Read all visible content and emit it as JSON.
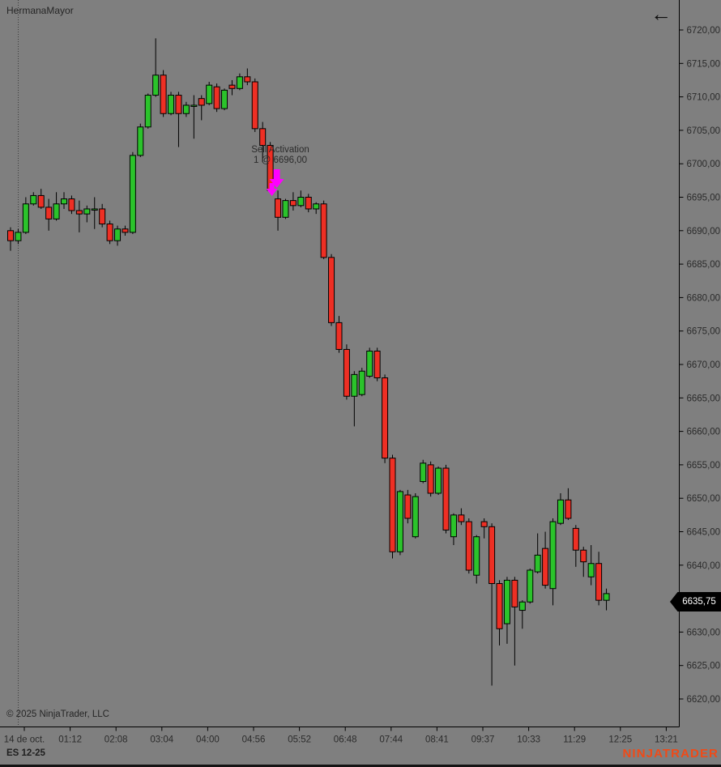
{
  "header": {
    "indicator_label": "HermanaMayor"
  },
  "icons": {
    "back_arrow_glyph": "←"
  },
  "annotation": {
    "line1": "Sell Activation",
    "line2": "1 @ 6696,00"
  },
  "footer": {
    "copyright": "© 2025 NinjaTrader, LLC",
    "instrument": "ES 12-25",
    "brand": "NINJATRADER"
  },
  "price_axis": {
    "labels": [
      "6720,00",
      "6715,00",
      "6710,00",
      "6705,00",
      "6700,00",
      "6695,00",
      "6690,00",
      "6685,00",
      "6680,00",
      "6675,00",
      "6670,00",
      "6665,00",
      "6660,00",
      "6655,00",
      "6650,00",
      "6645,00",
      "6640,00",
      "6635,00",
      "6630,00",
      "6625,00",
      "6620,00"
    ],
    "last_price_label": "6635,75"
  },
  "time_axis": {
    "labels": [
      "14 de oct.",
      "01:12",
      "02:08",
      "03:04",
      "04:00",
      "04:56",
      "05:52",
      "06:48",
      "07:44",
      "08:41",
      "09:37",
      "10:33",
      "11:29",
      "12:25",
      "13:21"
    ]
  },
  "colors": {
    "background": "#7f7f7f",
    "candle_up": "#2bc32b",
    "candle_down": "#ee2f24",
    "candle_outline": "#000000",
    "axis_line": "#000000",
    "label_text": "#2b2b2b",
    "marker_magenta": "#ff00ff",
    "badge_bg": "#000000",
    "badge_text": "#ffffff",
    "brand_orange": "#f04a17"
  },
  "chart_data": {
    "type": "candlestick",
    "title": "HermanaMayor",
    "instrument": "ES 12-25",
    "y_domain": [
      6620,
      6720
    ],
    "y_tick_step": 5,
    "x_labels": [
      "14 de oct.",
      "01:12",
      "02:08",
      "03:04",
      "04:00",
      "04:56",
      "05:52",
      "06:48",
      "07:44",
      "08:41",
      "09:37",
      "10:33",
      "11:29",
      "12:25",
      "13:21"
    ],
    "last_price": 6635.75,
    "session_break_index": 1,
    "annotation": {
      "text": "Sell Activation",
      "qty_price": "1 @ 6696,00",
      "price": 6696,
      "candle_index": 34,
      "marker_color": "#ff00ff"
    },
    "candles": [
      [
        6690,
        6690.5,
        6687,
        6688.5
      ],
      [
        6688.5,
        6690.25,
        6688,
        6689.75
      ],
      [
        6689.75,
        6695,
        6689.5,
        6694
      ],
      [
        6694,
        6695.75,
        6693.75,
        6695.25
      ],
      [
        6695.25,
        6696.25,
        6693.25,
        6693.5
      ],
      [
        6693.5,
        6694.75,
        6690,
        6691.75
      ],
      [
        6691.75,
        6695.75,
        6691.5,
        6694
      ],
      [
        6694,
        6695.75,
        6693.25,
        6694.75
      ],
      [
        6694.75,
        6695.25,
        6692.5,
        6693
      ],
      [
        6693,
        6694.5,
        6689.75,
        6692.5
      ],
      [
        6692.5,
        6693.75,
        6691.25,
        6693.25
      ],
      [
        6693.25,
        6695,
        6690.25,
        6693.25
      ],
      [
        6693.25,
        6694,
        6690.5,
        6691
      ],
      [
        6691,
        6691.5,
        6688,
        6688.5
      ],
      [
        6688.5,
        6690.75,
        6687.75,
        6690.25
      ],
      [
        6690.25,
        6690.75,
        6689.25,
        6689.75
      ],
      [
        6689.75,
        6701.75,
        6689.5,
        6701.25
      ],
      [
        6701.25,
        6706,
        6701,
        6705.5
      ],
      [
        6705.5,
        6710.5,
        6705.25,
        6710.25
      ],
      [
        6710.25,
        6718.75,
        6710,
        6713.25
      ],
      [
        6713.25,
        6714,
        6707,
        6707.5
      ],
      [
        6707.5,
        6710.75,
        6707.25,
        6710.25
      ],
      [
        6710.25,
        6710.75,
        6702.5,
        6707.5
      ],
      [
        6707.5,
        6709.25,
        6707,
        6708.75
      ],
      [
        6708.75,
        6710.25,
        6703.75,
        6708.75
      ],
      [
        6709.75,
        6710.25,
        6706.5,
        6708.75
      ],
      [
        6709,
        6712.25,
        6708.75,
        6711.75
      ],
      [
        6711.5,
        6712,
        6707.75,
        6708.25
      ],
      [
        6708.25,
        6711.25,
        6708,
        6711
      ],
      [
        6711.75,
        6712.5,
        6710.25,
        6711.25
      ],
      [
        6711.25,
        6713.5,
        6711,
        6713
      ],
      [
        6713,
        6714.25,
        6711.75,
        6712.25
      ],
      [
        6712.25,
        6712.75,
        6704.75,
        6705.25
      ],
      [
        6705.25,
        6706.25,
        6700.25,
        6702.75
      ],
      [
        6702.75,
        6703.25,
        6695.75,
        6696
      ],
      [
        6694.75,
        6696,
        6690,
        6692
      ],
      [
        6692,
        6694.75,
        6691.75,
        6694.5
      ],
      [
        6694.5,
        6695.75,
        6693,
        6693.75
      ],
      [
        6693.75,
        6696,
        6693.5,
        6695
      ],
      [
        6695,
        6695.5,
        6692.75,
        6693.25
      ],
      [
        6693.25,
        6694.25,
        6692.5,
        6694
      ],
      [
        6694,
        6694.5,
        6685.75,
        6686
      ],
      [
        6686,
        6686.5,
        6675.75,
        6676.25
      ],
      [
        6676.25,
        6677.25,
        6671.75,
        6672.25
      ],
      [
        6672.25,
        6673,
        6664.75,
        6665.25
      ],
      [
        6665.25,
        6669,
        6660.75,
        6668.5
      ],
      [
        6665.5,
        6669.5,
        6665.25,
        6669
      ],
      [
        6668.25,
        6672.5,
        6668,
        6672
      ],
      [
        6672,
        6672.5,
        6667.5,
        6668
      ],
      [
        6668,
        6668.5,
        6655.25,
        6656
      ],
      [
        6656,
        6656.5,
        6641,
        6642
      ],
      [
        6642,
        6651.25,
        6641.5,
        6651
      ],
      [
        6650.5,
        6651.25,
        6646.25,
        6647
      ],
      [
        6644.25,
        6650.75,
        6644,
        6650.25
      ],
      [
        6652.5,
        6655.75,
        6652.25,
        6655.25
      ],
      [
        6655,
        6655.5,
        6650.25,
        6650.75
      ],
      [
        6650.75,
        6654.75,
        6650.5,
        6654.5
      ],
      [
        6654.5,
        6655,
        6644.75,
        6645.25
      ],
      [
        6644.25,
        6647.75,
        6643,
        6647.5
      ],
      [
        6647.5,
        6648.5,
        6646,
        6646.5
      ],
      [
        6646.5,
        6647,
        6638.75,
        6639.25
      ],
      [
        6638.5,
        6644.5,
        6637.25,
        6644.25
      ],
      [
        6646.5,
        6647,
        6644,
        6645.75
      ],
      [
        6645.75,
        6646.25,
        6622,
        6637.25
      ],
      [
        6637.25,
        6637.75,
        6628,
        6630.5
      ],
      [
        6631.25,
        6638.25,
        6628.25,
        6637.75
      ],
      [
        6637.75,
        6638.25,
        6625,
        6633.75
      ],
      [
        6633.25,
        6634.75,
        6630.5,
        6634.5
      ],
      [
        6634.5,
        6639.5,
        6634.25,
        6639.25
      ],
      [
        6639,
        6644.75,
        6638.75,
        6641.5
      ],
      [
        6642.5,
        6645,
        6636.5,
        6637
      ],
      [
        6636.5,
        6647,
        6634,
        6646.5
      ],
      [
        6646.25,
        6650.75,
        6646,
        6649.75
      ],
      [
        6649.75,
        6651.5,
        6646.75,
        6647
      ],
      [
        6645.5,
        6646,
        6639.75,
        6642.25
      ],
      [
        6642.25,
        6642.75,
        6638.25,
        6640.5
      ],
      [
        6638.25,
        6643,
        6637,
        6640.25
      ],
      [
        6640.25,
        6642,
        6634,
        6634.75
      ],
      [
        6634.75,
        6636.5,
        6633.25,
        6635.75
      ]
    ]
  }
}
